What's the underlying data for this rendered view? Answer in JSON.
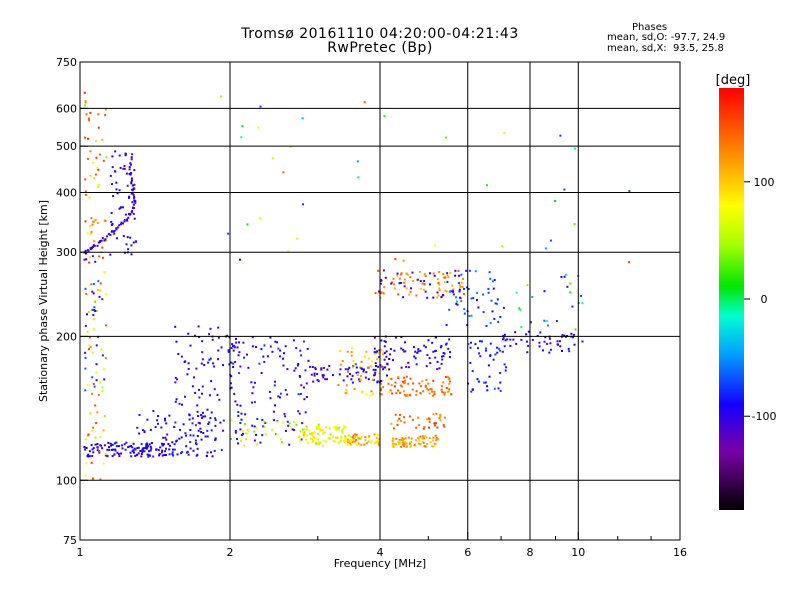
{
  "chart_data": {
    "type": "scatter",
    "title": "Tromsø 20161110 04:20:00-04:21:43",
    "subtitle": "RwPretec (Bp)",
    "xlabel": "Frequency [MHz]",
    "ylabel": "Stationary phase Virtual Height [km]",
    "x_scale": "log",
    "y_scale": "log",
    "xlim": [
      1,
      16
    ],
    "ylim": [
      75,
      750
    ],
    "x_ticks": [
      "1",
      "2",
      "4",
      "6",
      "8",
      "10",
      "16"
    ],
    "x_tick_values": [
      1,
      2,
      4,
      6,
      8,
      10,
      16
    ],
    "x_grid_values": [
      2,
      4,
      6,
      8,
      10
    ],
    "x_minor_values": [
      3,
      5,
      7,
      9,
      12,
      14
    ],
    "y_ticks": [
      "75",
      "100",
      "200",
      "300",
      "400",
      "500",
      "600",
      "750"
    ],
    "y_tick_values": [
      75,
      100,
      200,
      300,
      400,
      500,
      600,
      750
    ],
    "y_grid_values": [
      100,
      200,
      300,
      400,
      500,
      600
    ],
    "grid": true,
    "colorbar": {
      "label": "[deg]",
      "range": [
        -180,
        180
      ],
      "ticks": [
        "100",
        "0",
        "-100"
      ],
      "tick_values": [
        100,
        0,
        -100
      ]
    },
    "phases": {
      "heading": "Phases",
      "o_line": "mean, sd,O: -97.7, 24.9",
      "x_line": "mean, sd,X:  93.5, 25.8"
    },
    "clusters": [
      {
        "f0": 1.02,
        "f1": 1.55,
        "h0": 112,
        "h1": 120,
        "p0": -110,
        "p1": -80,
        "n": 110
      },
      {
        "f0": 1.3,
        "f1": 1.95,
        "h0": 112,
        "h1": 140,
        "p0": -115,
        "p1": -75,
        "n": 120
      },
      {
        "f0": 1.55,
        "f1": 2.1,
        "h0": 140,
        "h1": 210,
        "p0": -120,
        "p1": -80,
        "n": 80
      },
      {
        "f0": 2.0,
        "f1": 2.9,
        "h0": 118,
        "h1": 200,
        "p0": -120,
        "p1": -70,
        "n": 110
      },
      {
        "f0": 2.0,
        "f1": 3.2,
        "h0": 118,
        "h1": 135,
        "p0": 20,
        "p1": 100,
        "n": 40
      },
      {
        "f0": 2.8,
        "f1": 3.5,
        "h0": 118,
        "h1": 130,
        "p0": 50,
        "p1": 110,
        "n": 80
      },
      {
        "f0": 3.4,
        "f1": 4.0,
        "h0": 118,
        "h1": 125,
        "p0": 70,
        "p1": 140,
        "n": 55
      },
      {
        "f0": 4.2,
        "f1": 5.3,
        "h0": 117,
        "h1": 124,
        "p0": 90,
        "p1": 140,
        "n": 75
      },
      {
        "f0": 2.6,
        "f1": 4.2,
        "h0": 160,
        "h1": 175,
        "p0": -120,
        "p1": -85,
        "n": 70
      },
      {
        "f0": 3.3,
        "f1": 4.2,
        "h0": 150,
        "h1": 190,
        "p0": 70,
        "p1": 140,
        "n": 55
      },
      {
        "f0": 4.0,
        "f1": 5.6,
        "h0": 150,
        "h1": 165,
        "p0": 110,
        "p1": 160,
        "n": 75
      },
      {
        "f0": 3.9,
        "f1": 5.6,
        "h0": 170,
        "h1": 200,
        "p0": -120,
        "p1": -80,
        "n": 80
      },
      {
        "f0": 4.2,
        "f1": 5.4,
        "h0": 128,
        "h1": 138,
        "p0": 110,
        "p1": 160,
        "n": 35
      },
      {
        "f0": 3.9,
        "f1": 5.9,
        "h0": 240,
        "h1": 275,
        "p0": 100,
        "p1": 150,
        "n": 70
      },
      {
        "f0": 3.9,
        "f1": 5.8,
        "h0": 240,
        "h1": 275,
        "p0": -120,
        "p1": -80,
        "n": 35
      },
      {
        "f0": 5.4,
        "f1": 7.1,
        "h0": 210,
        "h1": 275,
        "p0": -100,
        "p1": -40,
        "n": 50
      },
      {
        "f0": 6.0,
        "f1": 7.2,
        "h0": 150,
        "h1": 200,
        "p0": -110,
        "p1": -60,
        "n": 45
      },
      {
        "f0": 7.0,
        "f1": 10.5,
        "h0": 185,
        "h1": 205,
        "p0": -115,
        "p1": -80,
        "n": 50
      },
      {
        "f0": 7.5,
        "f1": 10.2,
        "h0": 205,
        "h1": 270,
        "p0": -100,
        "p1": 40,
        "n": 25
      },
      {
        "f0": 1.02,
        "f1": 1.13,
        "h0": 100,
        "h1": 650,
        "p0": 40,
        "p1": 170,
        "n": 110
      },
      {
        "f0": 1.02,
        "f1": 1.12,
        "h0": 150,
        "h1": 300,
        "p0": -120,
        "p1": -60,
        "n": 30
      },
      {
        "f0": 1.15,
        "f1": 1.3,
        "h0": 290,
        "h1": 500,
        "p0": -120,
        "p1": -80,
        "n": 60
      },
      {
        "f0": 1.9,
        "f1": 4.6,
        "h0": 280,
        "h1": 650,
        "p0": -120,
        "p1": 160,
        "n": 22
      },
      {
        "f0": 5.0,
        "f1": 13.0,
        "h0": 280,
        "h1": 560,
        "p0": -100,
        "p1": 160,
        "n": 14
      }
    ],
    "trace_1": {
      "name": "",
      "points": [
        [
          1.02,
          300
        ],
        [
          1.05,
          305
        ],
        [
          1.08,
          312
        ],
        [
          1.12,
          320
        ],
        [
          1.16,
          330
        ],
        [
          1.2,
          340
        ],
        [
          1.24,
          352
        ],
        [
          1.27,
          365
        ],
        [
          1.29,
          378
        ],
        [
          1.28,
          395
        ],
        [
          1.27,
          420
        ],
        [
          1.26,
          450
        ],
        [
          1.27,
          490
        ]
      ],
      "p": -105
    }
  }
}
